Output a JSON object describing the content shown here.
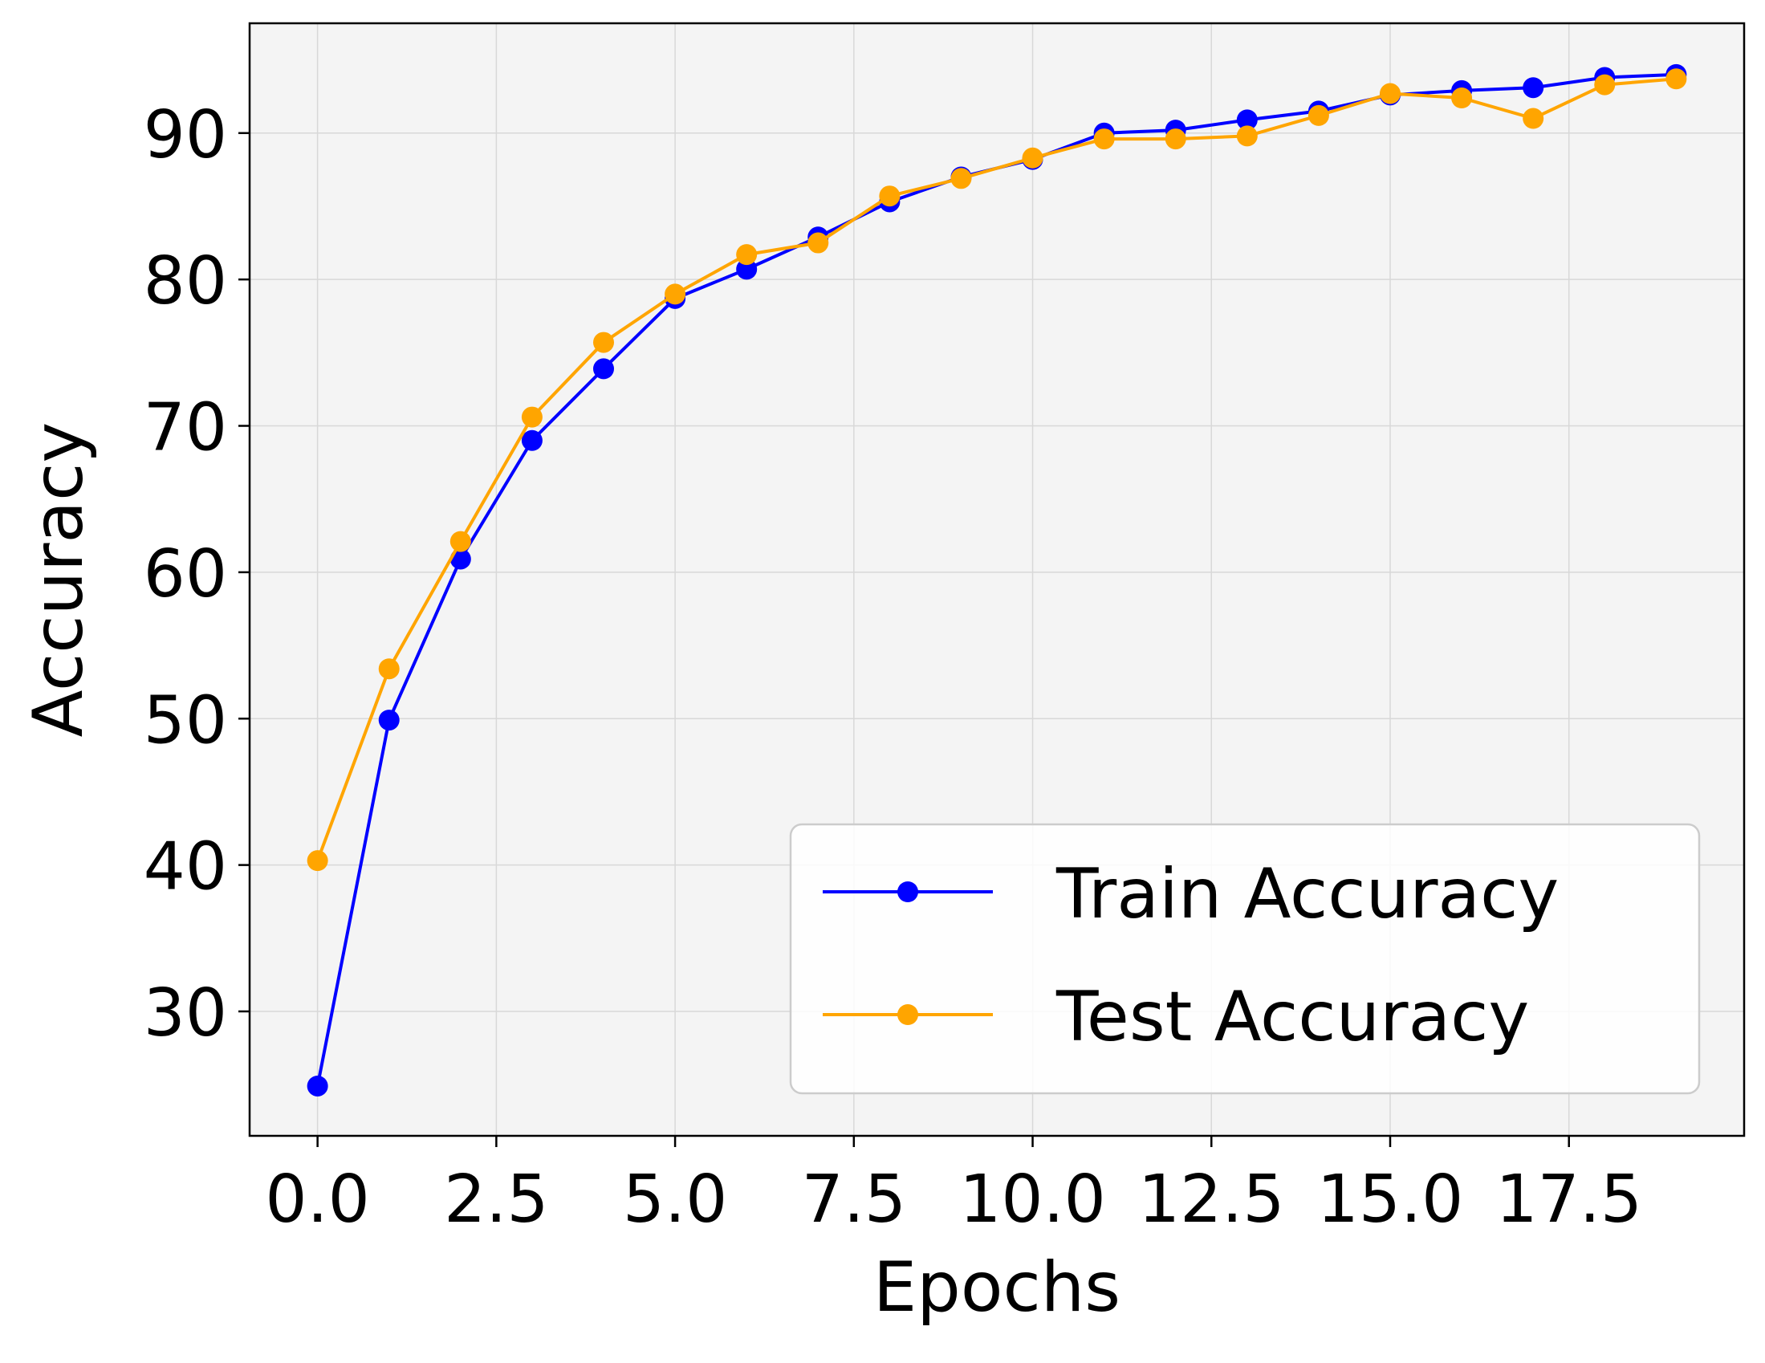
{
  "chart_data": {
    "type": "line",
    "xlabel": "Epochs",
    "ylabel": "Accuracy",
    "xlim": [
      -0.95,
      19.95
    ],
    "ylim": [
      21.5,
      97.5
    ],
    "x_ticks": [
      0.0,
      2.5,
      5.0,
      7.5,
      10.0,
      12.5,
      15.0,
      17.5
    ],
    "x_tick_labels": [
      "0.0",
      "2.5",
      "5.0",
      "7.5",
      "10.0",
      "12.5",
      "15.0",
      "17.5"
    ],
    "y_ticks": [
      30,
      40,
      50,
      60,
      70,
      80,
      90
    ],
    "y_tick_labels": [
      "30",
      "40",
      "50",
      "60",
      "70",
      "80",
      "90"
    ],
    "grid": true,
    "legend_position": "lower-right",
    "x": [
      0,
      1,
      2,
      3,
      4,
      5,
      6,
      7,
      8,
      9,
      10,
      11,
      12,
      13,
      14,
      15,
      16,
      17,
      18,
      19
    ],
    "series": [
      {
        "name": "Train Accuracy",
        "color": "#0000ff",
        "marker": "circle",
        "values": [
          24.9,
          49.9,
          60.9,
          69.0,
          73.9,
          78.7,
          80.7,
          82.9,
          85.3,
          87.0,
          88.2,
          90.0,
          90.2,
          90.9,
          91.5,
          92.6,
          92.9,
          93.1,
          93.8,
          94.0
        ]
      },
      {
        "name": "Test Accuracy",
        "color": "#ffa500",
        "marker": "circle",
        "values": [
          40.3,
          53.4,
          62.1,
          70.6,
          75.7,
          79.0,
          81.7,
          82.5,
          85.7,
          86.9,
          88.3,
          89.6,
          89.6,
          89.8,
          91.2,
          92.7,
          92.4,
          91.0,
          93.3,
          93.7
        ]
      }
    ],
    "colors": {
      "plot_background": "#f4f4f4",
      "grid": "#d8d8d8",
      "legend_border": "#cccccc"
    }
  }
}
